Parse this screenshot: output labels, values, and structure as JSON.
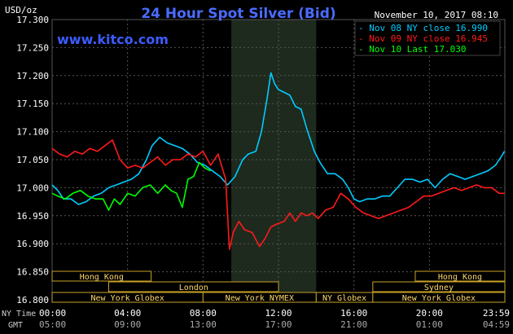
{
  "chart_data": {
    "type": "line",
    "title": "24 Hour Spot Silver (Bid)",
    "unit_label": "USD/oz",
    "watermark": "www.kitco.com",
    "timestamp": "November 10, 2017 08:10",
    "ylim": [
      16.8,
      17.3
    ],
    "y_ticks": [
      "17.300",
      "17.250",
      "17.200",
      "17.150",
      "17.100",
      "17.050",
      "17.000",
      "16.950",
      "16.900",
      "16.850",
      "16.800"
    ],
    "ny_time_label": "NY Time",
    "gmt_label": "GMT",
    "x_ticks_ny": [
      "00:00",
      "04:00",
      "08:00",
      "12:00",
      "16:00",
      "20:00",
      "23:59"
    ],
    "x_ticks_gmt": [
      "05:00",
      "09:00",
      "13:00",
      "17:00",
      "21:00",
      "01:00",
      "04:59"
    ],
    "highlight_hours": [
      9.5,
      14.0
    ],
    "legend": [
      {
        "label": "- Nov 08 NY close 16.990",
        "color": "#00ccff"
      },
      {
        "label": "- Nov 09 NY close 16.945",
        "color": "#ff1a1a"
      },
      {
        "label": "- Nov 10 Last 17.030",
        "color": "#00ff00"
      }
    ],
    "sessions": [
      {
        "label": "Hong Kong",
        "start": 0.0,
        "end": 5.25,
        "row": 0
      },
      {
        "label": "Hong Kong",
        "start": 19.25,
        "end": 24.0,
        "row": 0
      },
      {
        "label": "London",
        "start": 3.0,
        "end": 12.0,
        "row": 1
      },
      {
        "label": "Sydney",
        "start": 17.0,
        "end": 24.0,
        "row": 1
      },
      {
        "label": "New York Globex",
        "start": 0.0,
        "end": 8.0,
        "row": 2
      },
      {
        "label": "New York NYMEX",
        "start": 8.0,
        "end": 14.0,
        "row": 2
      },
      {
        "label": "NY Globex",
        "start": 14.0,
        "end": 17.0,
        "row": 2
      },
      {
        "label": "New York Globex",
        "start": 17.0,
        "end": 24.0,
        "row": 2
      }
    ],
    "series": [
      {
        "color": "#00ccff",
        "values": [
          [
            0.0,
            17.005
          ],
          [
            0.3,
            16.995
          ],
          [
            0.6,
            16.98
          ],
          [
            1.0,
            16.98
          ],
          [
            1.4,
            16.97
          ],
          [
            1.8,
            16.975
          ],
          [
            2.2,
            16.985
          ],
          [
            2.6,
            16.99
          ],
          [
            3.0,
            17.0
          ],
          [
            3.4,
            17.005
          ],
          [
            3.8,
            17.01
          ],
          [
            4.2,
            17.015
          ],
          [
            4.6,
            17.025
          ],
          [
            5.0,
            17.05
          ],
          [
            5.3,
            17.075
          ],
          [
            5.7,
            17.09
          ],
          [
            6.1,
            17.08
          ],
          [
            6.5,
            17.075
          ],
          [
            6.9,
            17.07
          ],
          [
            7.3,
            17.06
          ],
          [
            7.7,
            17.045
          ],
          [
            8.1,
            17.04
          ],
          [
            8.5,
            17.03
          ],
          [
            8.9,
            17.02
          ],
          [
            9.3,
            17.005
          ],
          [
            9.7,
            17.02
          ],
          [
            10.1,
            17.05
          ],
          [
            10.4,
            17.06
          ],
          [
            10.8,
            17.065
          ],
          [
            11.1,
            17.1
          ],
          [
            11.4,
            17.16
          ],
          [
            11.6,
            17.205
          ],
          [
            11.8,
            17.185
          ],
          [
            12.0,
            17.175
          ],
          [
            12.3,
            17.17
          ],
          [
            12.6,
            17.165
          ],
          [
            12.9,
            17.145
          ],
          [
            13.2,
            17.14
          ],
          [
            13.5,
            17.105
          ],
          [
            13.9,
            17.065
          ],
          [
            14.2,
            17.045
          ],
          [
            14.6,
            17.025
          ],
          [
            15.0,
            17.025
          ],
          [
            15.4,
            17.015
          ],
          [
            15.7,
            17.0
          ],
          [
            16.0,
            16.98
          ],
          [
            16.3,
            16.975
          ],
          [
            16.7,
            16.98
          ],
          [
            17.1,
            16.98
          ],
          [
            17.5,
            16.985
          ],
          [
            17.9,
            16.985
          ],
          [
            18.3,
            17.0
          ],
          [
            18.7,
            17.015
          ],
          [
            19.1,
            17.015
          ],
          [
            19.5,
            17.01
          ],
          [
            19.9,
            17.015
          ],
          [
            20.3,
            17.0
          ],
          [
            20.7,
            17.015
          ],
          [
            21.1,
            17.025
          ],
          [
            21.5,
            17.02
          ],
          [
            21.9,
            17.015
          ],
          [
            22.3,
            17.02
          ],
          [
            22.7,
            17.025
          ],
          [
            23.1,
            17.03
          ],
          [
            23.5,
            17.04
          ],
          [
            23.8,
            17.055
          ],
          [
            23.98,
            17.065
          ]
        ]
      },
      {
        "color": "#ff1a1a",
        "values": [
          [
            0.0,
            17.07
          ],
          [
            0.4,
            17.06
          ],
          [
            0.8,
            17.055
          ],
          [
            1.2,
            17.065
          ],
          [
            1.6,
            17.06
          ],
          [
            2.0,
            17.07
          ],
          [
            2.4,
            17.065
          ],
          [
            2.8,
            17.075
          ],
          [
            3.2,
            17.085
          ],
          [
            3.6,
            17.05
          ],
          [
            4.0,
            17.035
          ],
          [
            4.4,
            17.04
          ],
          [
            4.8,
            17.035
          ],
          [
            5.2,
            17.045
          ],
          [
            5.6,
            17.055
          ],
          [
            6.0,
            17.04
          ],
          [
            6.4,
            17.05
          ],
          [
            6.8,
            17.05
          ],
          [
            7.2,
            17.06
          ],
          [
            7.6,
            17.055
          ],
          [
            8.0,
            17.065
          ],
          [
            8.4,
            17.04
          ],
          [
            8.8,
            17.06
          ],
          [
            9.2,
            17.015
          ],
          [
            9.4,
            16.89
          ],
          [
            9.6,
            16.92
          ],
          [
            9.9,
            16.94
          ],
          [
            10.2,
            16.925
          ],
          [
            10.6,
            16.92
          ],
          [
            11.0,
            16.895
          ],
          [
            11.3,
            16.91
          ],
          [
            11.6,
            16.93
          ],
          [
            11.9,
            16.935
          ],
          [
            12.3,
            16.94
          ],
          [
            12.6,
            16.955
          ],
          [
            12.9,
            16.94
          ],
          [
            13.2,
            16.955
          ],
          [
            13.5,
            16.95
          ],
          [
            13.8,
            16.955
          ],
          [
            14.1,
            16.945
          ],
          [
            14.5,
            16.96
          ],
          [
            14.9,
            16.965
          ],
          [
            15.3,
            16.99
          ],
          [
            15.7,
            16.98
          ],
          [
            16.1,
            16.965
          ],
          [
            16.5,
            16.955
          ],
          [
            16.9,
            16.95
          ],
          [
            17.3,
            16.945
          ],
          [
            17.7,
            16.95
          ],
          [
            18.1,
            16.955
          ],
          [
            18.5,
            16.96
          ],
          [
            18.9,
            16.965
          ],
          [
            19.3,
            16.975
          ],
          [
            19.7,
            16.985
          ],
          [
            20.1,
            16.985
          ],
          [
            20.5,
            16.99
          ],
          [
            20.9,
            16.995
          ],
          [
            21.3,
            17.0
          ],
          [
            21.7,
            16.995
          ],
          [
            22.1,
            17.0
          ],
          [
            22.5,
            17.005
          ],
          [
            22.9,
            17.0
          ],
          [
            23.3,
            17.0
          ],
          [
            23.7,
            16.99
          ],
          [
            23.98,
            16.99
          ]
        ]
      },
      {
        "color": "#00ff00",
        "values": [
          [
            0.0,
            16.99
          ],
          [
            0.3,
            16.985
          ],
          [
            0.7,
            16.98
          ],
          [
            1.1,
            16.99
          ],
          [
            1.5,
            16.995
          ],
          [
            1.9,
            16.985
          ],
          [
            2.3,
            16.98
          ],
          [
            2.7,
            16.98
          ],
          [
            3.0,
            16.96
          ],
          [
            3.3,
            16.98
          ],
          [
            3.6,
            16.97
          ],
          [
            4.0,
            16.99
          ],
          [
            4.4,
            16.985
          ],
          [
            4.8,
            17.0
          ],
          [
            5.2,
            17.005
          ],
          [
            5.6,
            16.99
          ],
          [
            6.0,
            17.005
          ],
          [
            6.3,
            16.995
          ],
          [
            6.6,
            16.99
          ],
          [
            6.9,
            16.965
          ],
          [
            7.2,
            17.015
          ],
          [
            7.5,
            17.02
          ],
          [
            7.8,
            17.045
          ],
          [
            8.1,
            17.035
          ],
          [
            8.4,
            17.03
          ]
        ]
      }
    ]
  }
}
